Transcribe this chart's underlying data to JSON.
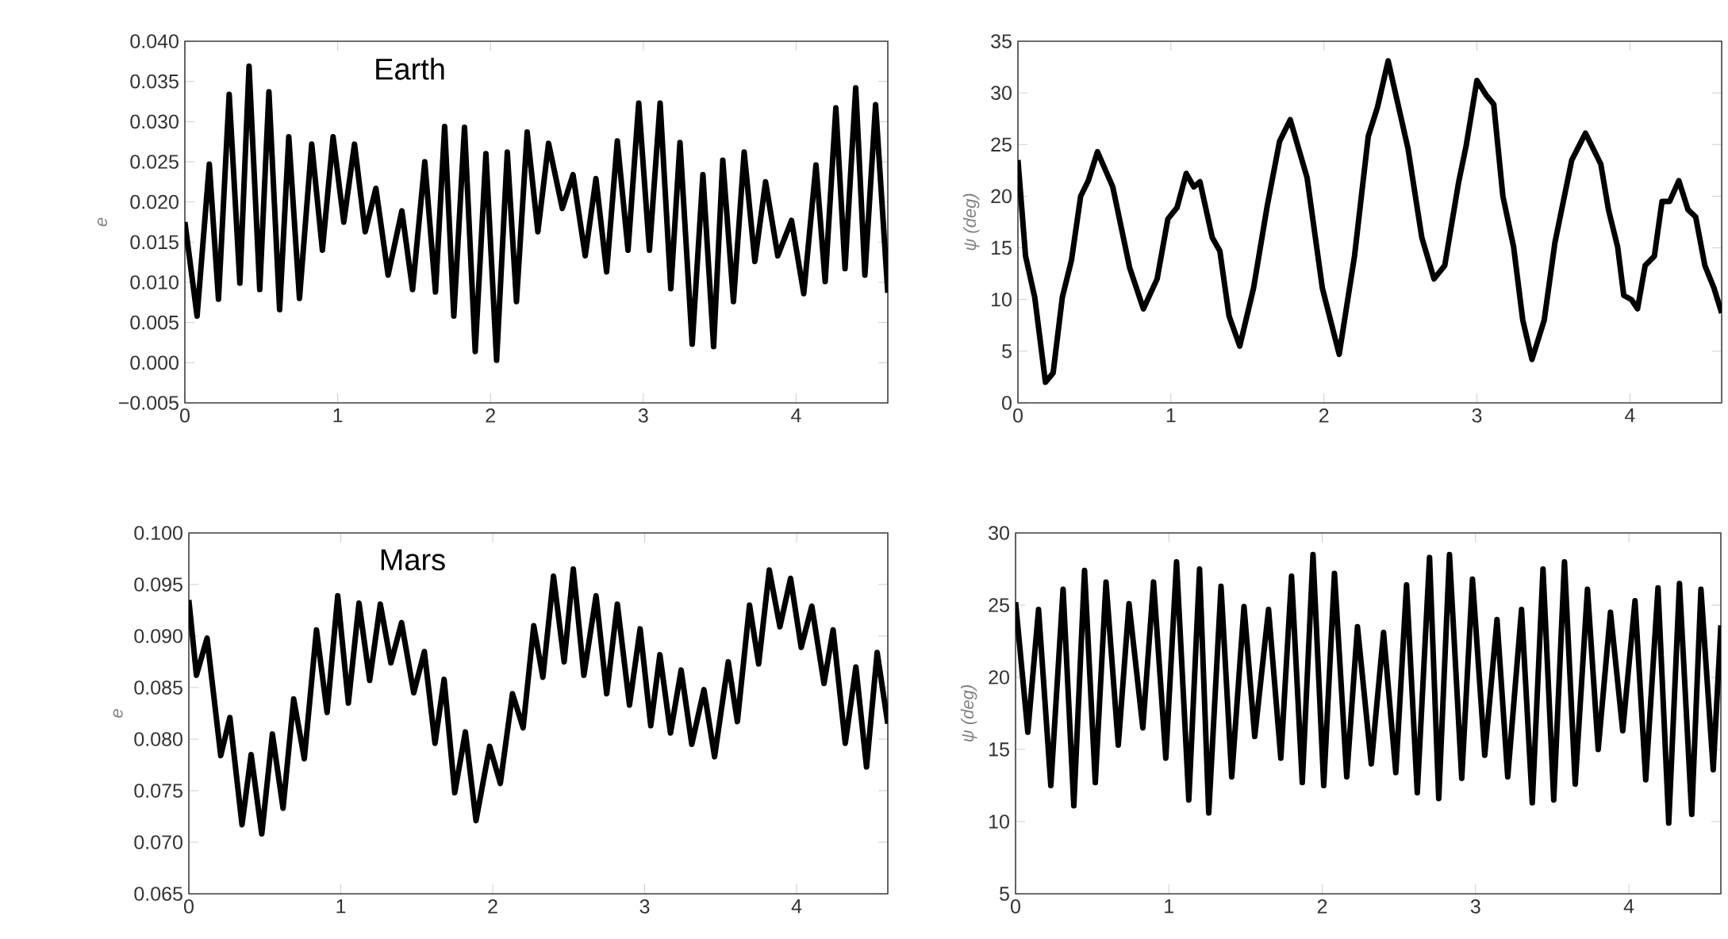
{
  "chart_data": [
    {
      "type": "line",
      "ylabel": "e",
      "annotations": [
        "Earth"
      ],
      "color": "#000000",
      "xlim": [
        0,
        4.6
      ],
      "ylim": [
        -0.005,
        0.04
      ],
      "xticks": [
        0,
        1,
        2,
        3,
        4
      ],
      "yticks": [
        {
          "value": -0.005,
          "label": "−0.005"
        },
        {
          "value": 0,
          "label": "0.000"
        },
        {
          "value": 0.005,
          "label": "0.005"
        },
        {
          "value": 0.01,
          "label": "0.010"
        },
        {
          "value": 0.015,
          "label": "0.015"
        },
        {
          "value": 0.02,
          "label": "0.020"
        },
        {
          "value": 0.025,
          "label": "0.025"
        },
        {
          "value": 0.03,
          "label": "0.030"
        },
        {
          "value": 0.035,
          "label": "0.035"
        },
        {
          "value": 0.04,
          "label": "0.040"
        }
      ],
      "x": [
        0,
        0.08,
        0.16,
        0.22,
        0.29,
        0.36,
        0.42,
        0.49,
        0.55,
        0.62,
        0.68,
        0.75,
        0.83,
        0.9,
        0.97,
        1.04,
        1.11,
        1.18,
        1.25,
        1.33,
        1.42,
        1.49,
        1.57,
        1.64,
        1.7,
        1.76,
        1.83,
        1.9,
        1.97,
        2.04,
        2.11,
        2.17,
        2.24,
        2.31,
        2.38,
        2.47,
        2.54,
        2.62,
        2.69,
        2.76,
        2.83,
        2.9,
        2.97,
        3.04,
        3.11,
        3.18,
        3.24,
        3.32,
        3.39,
        3.46,
        3.52,
        3.59,
        3.66,
        3.73,
        3.8,
        3.88,
        3.97,
        4.05,
        4.13,
        4.19,
        4.26,
        4.32,
        4.39,
        4.45,
        4.52,
        4.6
      ],
      "values": [
        0.0175,
        0.0058,
        0.0247,
        0.0079,
        0.0334,
        0.0099,
        0.0369,
        0.0091,
        0.0337,
        0.0066,
        0.0281,
        0.008,
        0.0272,
        0.014,
        0.0281,
        0.0175,
        0.0272,
        0.0163,
        0.0217,
        0.0109,
        0.0189,
        0.0091,
        0.025,
        0.0088,
        0.0294,
        0.0058,
        0.0293,
        0.0014,
        0.026,
        0.0003,
        0.0262,
        0.0076,
        0.0287,
        0.0163,
        0.0273,
        0.0192,
        0.0234,
        0.0133,
        0.0229,
        0.0113,
        0.0276,
        0.014,
        0.0323,
        0.014,
        0.0323,
        0.0092,
        0.0274,
        0.0023,
        0.0234,
        0.002,
        0.0252,
        0.0076,
        0.0262,
        0.0126,
        0.0225,
        0.0133,
        0.0177,
        0.0086,
        0.0246,
        0.0101,
        0.0317,
        0.0117,
        0.0342,
        0.0109,
        0.0321,
        0.0087
      ]
    },
    {
      "type": "line",
      "ylabel": "ψ (deg)",
      "color": "#000000",
      "xlim": [
        0,
        4.6
      ],
      "ylim": [
        0,
        35
      ],
      "xticks": [
        0,
        1,
        2,
        3,
        4
      ],
      "yticks": [
        0,
        5,
        10,
        15,
        20,
        25,
        30,
        35
      ],
      "x": [
        0,
        0.05,
        0.11,
        0.18,
        0.23,
        0.29,
        0.35,
        0.41,
        0.46,
        0.52,
        0.62,
        0.73,
        0.82,
        0.91,
        0.98,
        1.04,
        1.1,
        1.15,
        1.19,
        1.27,
        1.32,
        1.38,
        1.45,
        1.54,
        1.63,
        1.71,
        1.78,
        1.89,
        1.99,
        2.1,
        2.2,
        2.29,
        2.35,
        2.42,
        2.55,
        2.64,
        2.72,
        2.79,
        2.88,
        2.93,
        3.0,
        3.06,
        3.11,
        3.17,
        3.24,
        3.3,
        3.36,
        3.44,
        3.51,
        3.62,
        3.71,
        3.81,
        3.86,
        3.92,
        3.96,
        4.01,
        4.05,
        4.1,
        4.16,
        4.21,
        4.26,
        4.32,
        4.38,
        4.43,
        4.49,
        4.55,
        4.6
      ],
      "values": [
        23.5,
        14.2,
        10.2,
        2.0,
        2.9,
        10.2,
        13.8,
        20.0,
        21.5,
        24.3,
        20.9,
        13.1,
        9.1,
        12.0,
        17.8,
        18.9,
        22.2,
        20.9,
        21.4,
        16.0,
        14.7,
        8.4,
        5.5,
        11.1,
        19.1,
        25.3,
        27.4,
        21.8,
        11.1,
        4.7,
        14.2,
        25.8,
        28.6,
        33.1,
        24.6,
        16.0,
        12.0,
        13.3,
        21.3,
        24.9,
        31.2,
        29.8,
        28.9,
        20.0,
        15.1,
        8.0,
        4.2,
        8.0,
        15.5,
        23.5,
        26.1,
        23.1,
        18.7,
        15.1,
        10.4,
        10.0,
        9.1,
        13.3,
        14.2,
        19.5,
        19.5,
        21.5,
        18.7,
        18.0,
        13.3,
        11.1,
        8.7
      ]
    },
    {
      "type": "line",
      "ylabel": "e",
      "annotations": [
        "Mars"
      ],
      "color": "#000000",
      "xlim": [
        0,
        4.6
      ],
      "ylim": [
        0.065,
        0.1
      ],
      "xticks": [
        0,
        1,
        2,
        3,
        4
      ],
      "yticks": [
        {
          "value": 0.065,
          "label": "0.065"
        },
        {
          "value": 0.07,
          "label": "0.070"
        },
        {
          "value": 0.075,
          "label": "0.075"
        },
        {
          "value": 0.08,
          "label": "0.080"
        },
        {
          "value": 0.085,
          "label": "0.085"
        },
        {
          "value": 0.09,
          "label": "0.090"
        },
        {
          "value": 0.095,
          "label": "0.095"
        },
        {
          "value": 0.1,
          "label": "0.100"
        }
      ],
      "x": [
        0,
        0.05,
        0.12,
        0.21,
        0.27,
        0.35,
        0.41,
        0.48,
        0.55,
        0.62,
        0.69,
        0.76,
        0.84,
        0.91,
        0.98,
        1.05,
        1.12,
        1.19,
        1.26,
        1.33,
        1.4,
        1.48,
        1.55,
        1.62,
        1.68,
        1.75,
        1.82,
        1.89,
        1.98,
        2.05,
        2.13,
        2.2,
        2.27,
        2.33,
        2.4,
        2.47,
        2.53,
        2.6,
        2.68,
        2.75,
        2.82,
        2.9,
        2.97,
        3.04,
        3.1,
        3.17,
        3.24,
        3.31,
        3.39,
        3.46,
        3.55,
        3.61,
        3.69,
        3.75,
        3.82,
        3.89,
        3.96,
        4.03,
        4.1,
        4.18,
        4.24,
        4.32,
        4.39,
        4.46,
        4.53,
        4.6
      ],
      "values": [
        0.0935,
        0.0862,
        0.0898,
        0.0784,
        0.0821,
        0.0717,
        0.0785,
        0.0708,
        0.0805,
        0.0733,
        0.0839,
        0.0781,
        0.0906,
        0.0826,
        0.0939,
        0.0835,
        0.0932,
        0.0857,
        0.0931,
        0.0874,
        0.0913,
        0.0845,
        0.0885,
        0.0796,
        0.0858,
        0.0748,
        0.0807,
        0.0721,
        0.0793,
        0.0757,
        0.0844,
        0.0811,
        0.091,
        0.086,
        0.0958,
        0.0875,
        0.0965,
        0.0862,
        0.0939,
        0.0844,
        0.0931,
        0.0833,
        0.0907,
        0.0813,
        0.0882,
        0.0806,
        0.0867,
        0.0795,
        0.0848,
        0.0783,
        0.0875,
        0.0817,
        0.093,
        0.0873,
        0.0964,
        0.0909,
        0.0956,
        0.0889,
        0.0929,
        0.0854,
        0.0906,
        0.0796,
        0.087,
        0.0773,
        0.0884,
        0.0815
      ]
    },
    {
      "type": "line",
      "ylabel": "ψ (deg)",
      "color": "#000000",
      "xlim": [
        0,
        4.6
      ],
      "ylim": [
        5,
        30
      ],
      "xticks": [
        0,
        1,
        2,
        3,
        4
      ],
      "yticks": [
        5,
        10,
        15,
        20,
        25,
        30
      ],
      "x": [
        0,
        0.08,
        0.15,
        0.23,
        0.31,
        0.38,
        0.45,
        0.52,
        0.59,
        0.67,
        0.74,
        0.83,
        0.9,
        0.98,
        1.05,
        1.13,
        1.2,
        1.26,
        1.34,
        1.41,
        1.49,
        1.56,
        1.65,
        1.73,
        1.8,
        1.87,
        1.94,
        2.01,
        2.08,
        2.16,
        2.23,
        2.32,
        2.4,
        2.48,
        2.55,
        2.62,
        2.7,
        2.76,
        2.83,
        2.91,
        2.98,
        3.06,
        3.14,
        3.21,
        3.3,
        3.37,
        3.44,
        3.51,
        3.58,
        3.65,
        3.73,
        3.8,
        3.88,
        3.96,
        4.04,
        4.11,
        4.19,
        4.26,
        4.33,
        4.41,
        4.47,
        4.55,
        4.6
      ],
      "values": [
        25.2,
        16.2,
        24.7,
        12.5,
        26.1,
        11.1,
        27.4,
        12.7,
        26.6,
        15.3,
        25.1,
        16.5,
        26.6,
        14.4,
        28.0,
        11.5,
        27.5,
        10.6,
        26.3,
        13.1,
        24.9,
        15.9,
        24.7,
        14.4,
        27.0,
        12.7,
        28.5,
        12.5,
        27.2,
        13.1,
        23.5,
        14.0,
        23.1,
        13.4,
        26.4,
        12.0,
        28.3,
        11.6,
        28.5,
        13.0,
        26.8,
        14.6,
        24.0,
        13.1,
        24.7,
        11.3,
        27.5,
        11.5,
        28.0,
        12.6,
        26.1,
        15.0,
        24.5,
        16.3,
        25.3,
        12.9,
        26.2,
        9.9,
        26.5,
        10.5,
        26.1,
        13.6,
        23.6
      ]
    }
  ]
}
